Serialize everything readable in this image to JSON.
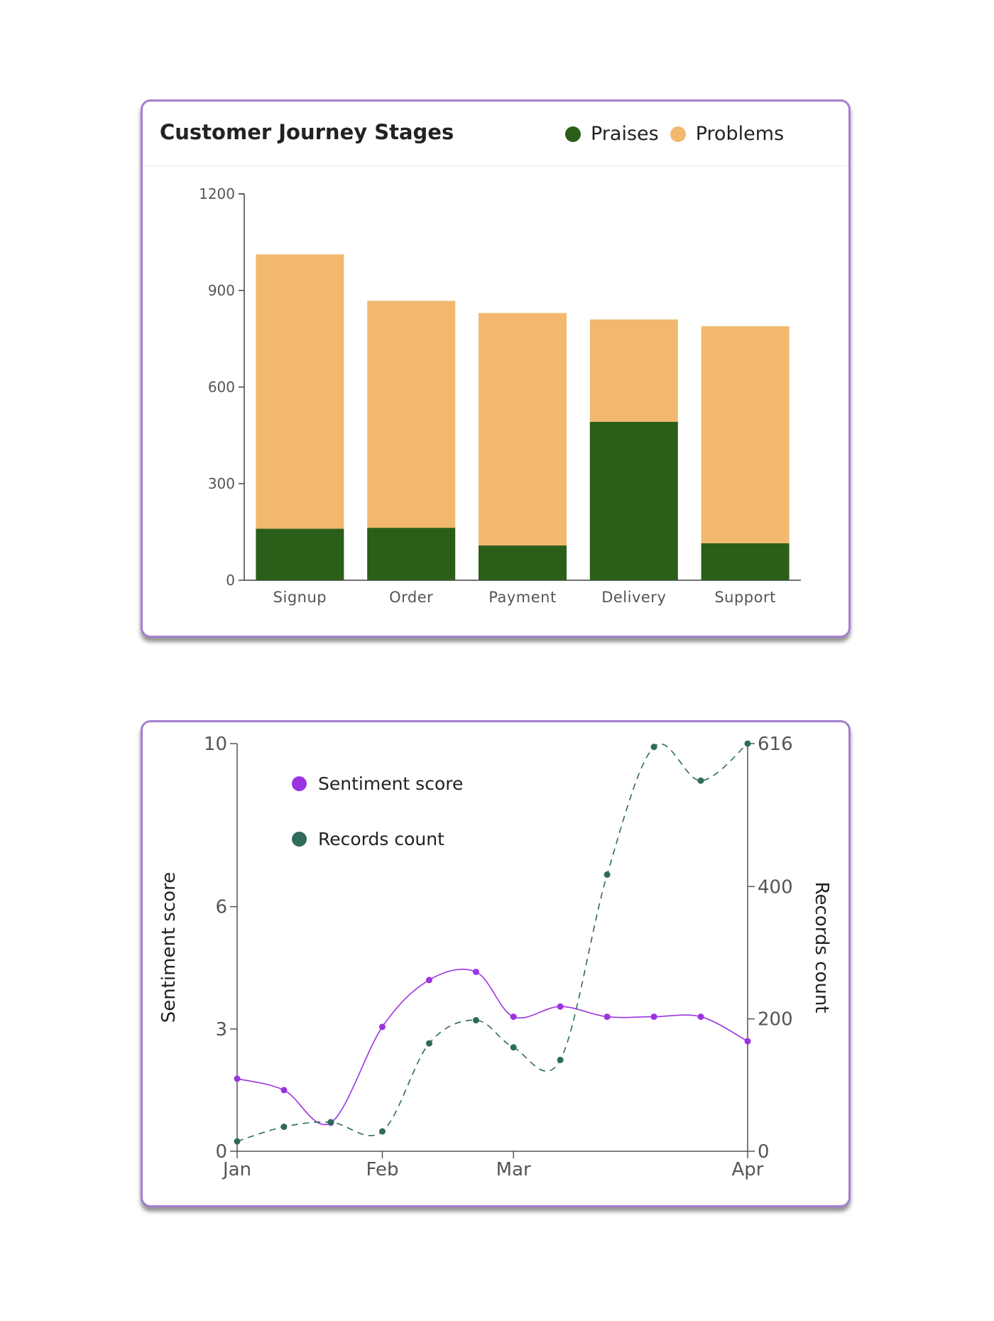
{
  "colors": {
    "praises": "#2b5e18",
    "problems": "#f2b96e",
    "sentiment": "#9b34e0",
    "records": "#2e6b5a",
    "border": "#a47fd0"
  },
  "chart_data": [
    {
      "type": "bar",
      "stacked": true,
      "title": "Customer Journey Stages",
      "categories": [
        "Signup",
        "Order",
        "Payment",
        "Delivery",
        "Support"
      ],
      "series": [
        {
          "name": "Praises",
          "values": [
            160,
            163,
            108,
            492,
            115
          ]
        },
        {
          "name": "Problems",
          "values": [
            852,
            705,
            722,
            318,
            674
          ]
        }
      ],
      "ylim": [
        0,
        1200
      ],
      "yticks": [
        "0",
        "300",
        "600",
        "900",
        "1200"
      ],
      "legend_position": "top-right",
      "grid": false
    },
    {
      "type": "line",
      "xlabels": [
        "Jan",
        "Feb",
        "Mar",
        "Apr"
      ],
      "legend_position": "top-left",
      "grid": false,
      "left_axis": {
        "label": "Sentiment score",
        "ylim": [
          0,
          10
        ],
        "ticks": [
          "0",
          "3",
          "6",
          "10"
        ]
      },
      "right_axis": {
        "label": "Records count",
        "ylim": [
          0,
          616
        ],
        "ticks": [
          "0",
          "200",
          "400",
          "616"
        ]
      },
      "series": [
        {
          "name": "Sentiment score",
          "axis": "left",
          "style": "solid",
          "x": [
            "2023-01-01",
            "2023-01-11",
            "2023-01-21",
            "2023-02-01",
            "2023-02-11",
            "2023-02-21",
            "2023-03-01",
            "2023-03-11",
            "2023-03-21",
            "2023-03-31",
            "2023-04-10",
            "2023-04-20"
          ],
          "values": [
            1.78,
            1.5,
            0.7,
            3.05,
            4.2,
            4.4,
            3.3,
            3.55,
            3.3,
            3.3,
            3.3,
            2.7
          ]
        },
        {
          "name": "Records count",
          "axis": "right",
          "style": "dashed",
          "x": [
            "2023-01-01",
            "2023-01-11",
            "2023-01-21",
            "2023-02-01",
            "2023-02-11",
            "2023-02-21",
            "2023-03-01",
            "2023-03-11",
            "2023-03-21",
            "2023-03-31",
            "2023-04-10",
            "2023-04-20"
          ],
          "values": [
            15,
            37,
            44,
            30,
            163,
            198,
            157,
            138,
            418,
            611,
            560,
            616
          ]
        }
      ]
    }
  ]
}
